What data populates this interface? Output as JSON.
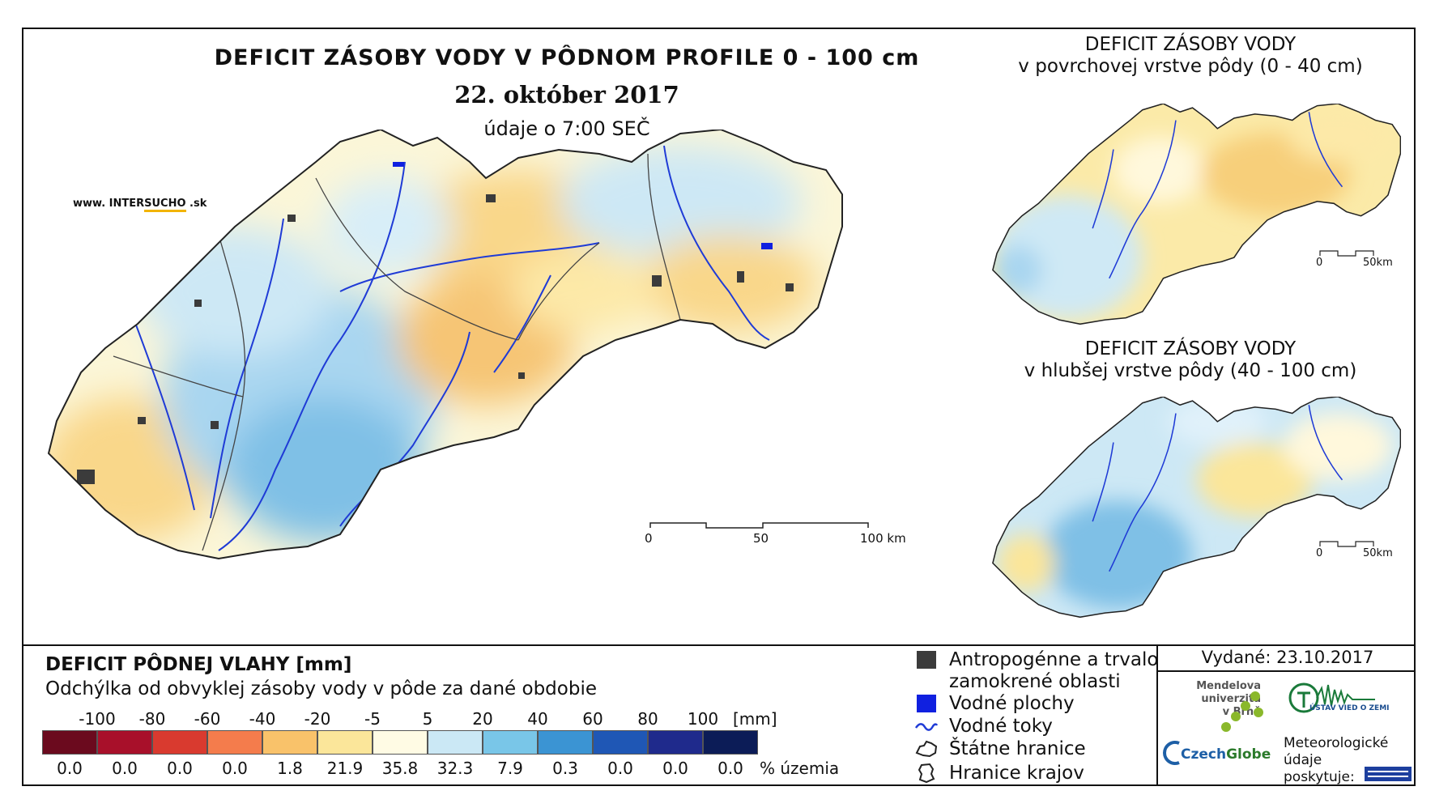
{
  "header": {
    "title": "DEFICIT ZÁSOBY VODY V PÔDNOM PROFILE 0 - 100 cm",
    "date": "22. október 2017",
    "time": "údaje o 7:00 SEČ",
    "website_prefix": "www. INTER",
    "website_highlight": "SUCHO",
    "website_suffix": " .sk"
  },
  "inset_top": {
    "title_line1": "DEFICIT ZÁSOBY VODY",
    "title_line2": "v povrchovej vrstve pôdy (0 - 40 cm)",
    "scale_start": "0",
    "scale_end": "50km"
  },
  "inset_bottom": {
    "title_line1": "DEFICIT ZÁSOBY VODY",
    "title_line2": "v hlubšej vrstve pôdy (40 - 100 cm)",
    "scale_start": "0",
    "scale_end": "50km"
  },
  "main_scale": {
    "labels": [
      "0",
      "50",
      "100 km"
    ]
  },
  "legend": {
    "title": "DEFICIT PÔDNEJ VLAHY [mm]",
    "subtitle": "Odchýlka od obvyklej zásoby vody v pôde za dané obdobie",
    "breaks": [
      "-100",
      "-80",
      "-60",
      "-40",
      "-20",
      "-5",
      "5",
      "20",
      "40",
      "60",
      "80",
      "100"
    ],
    "unit": "[mm]",
    "colors": [
      "#6b0a1e",
      "#a8102a",
      "#d93a2f",
      "#f47c4c",
      "#f9c26a",
      "#fbe69a",
      "#fffbe4",
      "#cbe8f5",
      "#79c6e8",
      "#3b94d3",
      "#1f57b5",
      "#1f2a8c",
      "#0c1c57"
    ],
    "percentages": [
      "0.0",
      "0.0",
      "0.0",
      "0.0",
      "1.8",
      "21.9",
      "35.8",
      "32.3",
      "7.9",
      "0.3",
      "0.0",
      "0.0",
      "0.0"
    ],
    "pct_unit": "% územia"
  },
  "map_legend": {
    "items": [
      {
        "label": "Antropogénne a trvalo zamokrené oblasti",
        "symbol": "dark-square-icon"
      },
      {
        "label": "Vodné plochy",
        "symbol": "blue-square-icon"
      },
      {
        "label": "Vodné toky",
        "symbol": "river-line-icon"
      },
      {
        "label": "Štátne hranice",
        "symbol": "state-border-icon"
      },
      {
        "label": "Hranice krajov",
        "symbol": "region-border-icon"
      }
    ]
  },
  "credits": {
    "issued": "Vydané: 23.10.2017",
    "mendel_line1": "Mendelova",
    "mendel_line2": "univerzita",
    "mendel_line3": "v Brně",
    "czechglobe_a": "Czech",
    "czechglobe_b": "Globe",
    "uvoz": "ÚSTAV VIED O ZEMI",
    "met_line1": "Meteorologické",
    "met_line2": "údaje",
    "met_line3": "poskytuje:"
  }
}
